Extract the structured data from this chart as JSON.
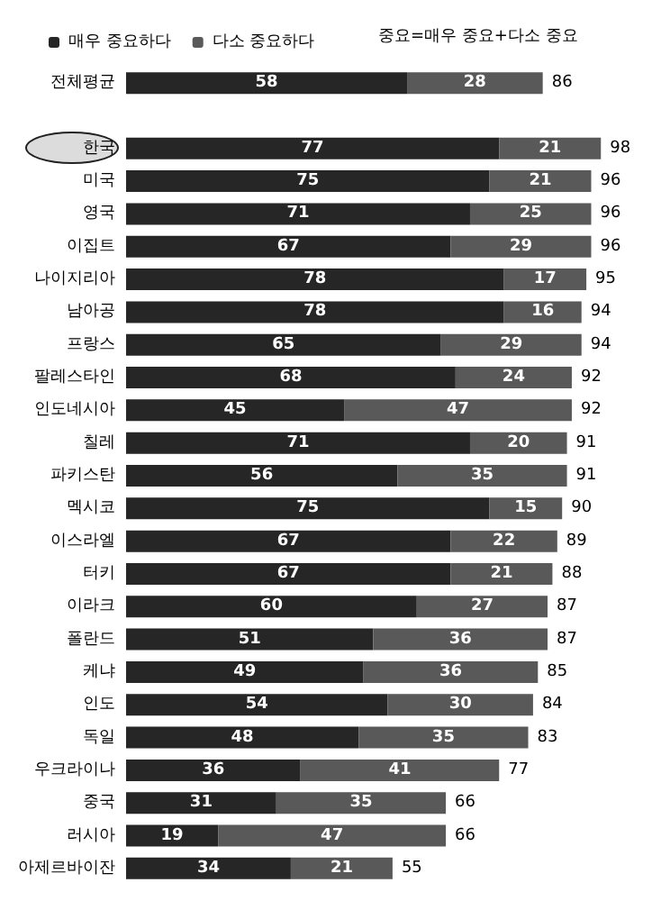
{
  "chart_data": {
    "type": "bar",
    "orientation": "horizontal",
    "stacked": true,
    "data_labels": true,
    "legend": "top left",
    "categories": [
      "전체평균",
      null,
      "한국",
      "미국",
      "영국",
      "이집트",
      "나이지리아",
      "남아공",
      "프랑스",
      "팔레스타인",
      "인도네시아",
      "칠레",
      "파키스탄",
      "멕시코",
      "이스라엘",
      "터키",
      "이라크",
      "폴란드",
      "케냐",
      "인도",
      "독일",
      "우크라이나",
      "중국",
      "러시아",
      "아제르바이잔"
    ],
    "series": [
      {
        "name": "매우 중요하다",
        "color": "#262626",
        "values": [
          58,
          null,
          77,
          75,
          71,
          67,
          78,
          78,
          65,
          68,
          45,
          71,
          56,
          75,
          67,
          67,
          60,
          51,
          49,
          54,
          48,
          36,
          31,
          19,
          34
        ]
      },
      {
        "name": "다소 중요하다",
        "color": "#595959",
        "values": [
          28,
          null,
          21,
          21,
          25,
          29,
          17,
          16,
          29,
          24,
          47,
          20,
          35,
          15,
          22,
          21,
          27,
          36,
          36,
          30,
          35,
          41,
          35,
          47,
          21
        ]
      }
    ],
    "totals": [
      "86",
      null,
      "98",
      "96",
      "96",
      "96",
      "95",
      "94",
      "94",
      "92",
      "92",
      "91",
      "91",
      "90",
      "89",
      "88",
      "87",
      "87",
      "85",
      "84",
      "83",
      "77",
      "66",
      "66",
      "55"
    ],
    "annotations": [
      "중요=매우 중요+다소 중요"
    ]
  }
}
